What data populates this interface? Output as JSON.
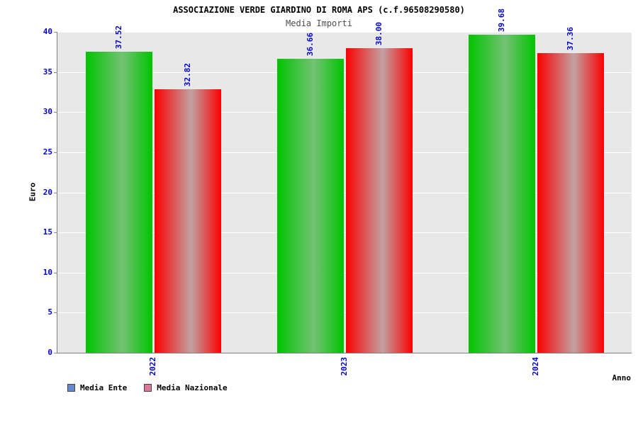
{
  "header": {
    "title": "ASSOCIAZIONE VERDE GIARDINO DI ROMA APS (c.f.96508290580)",
    "subtitle": "Media Importi"
  },
  "chart_data": {
    "type": "bar",
    "title": "ASSOCIAZIONE VERDE GIARDINO DI ROMA APS (c.f.96508290580)",
    "subtitle": "Media Importi",
    "xlabel": "Anno",
    "ylabel": "Euro",
    "categories": [
      "2022",
      "2023",
      "2024"
    ],
    "series": [
      {
        "name": "Media Ente",
        "values": [
          37.52,
          36.66,
          39.68
        ],
        "color": "#00cc00",
        "gradient": [
          "#00c400",
          "#74c274"
        ],
        "legend_color": "#6688cc"
      },
      {
        "name": "Media Nazionale",
        "values": [
          32.82,
          38.0,
          37.36
        ],
        "color": "#ff0000",
        "gradient": [
          "#fb0000",
          "#c2a2a2"
        ],
        "legend_color": "#dd7799"
      }
    ],
    "ylim": [
      0,
      40
    ],
    "yticks": [
      0,
      5,
      10,
      15,
      20,
      25,
      30,
      35,
      40
    ],
    "grid": true,
    "legend_position": "bottom-left",
    "colors": {
      "tick_label": "#0000cc",
      "plot_bg": "#e8e8e8",
      "grid_line": "#ffffff",
      "axis_line": "#808080"
    }
  }
}
